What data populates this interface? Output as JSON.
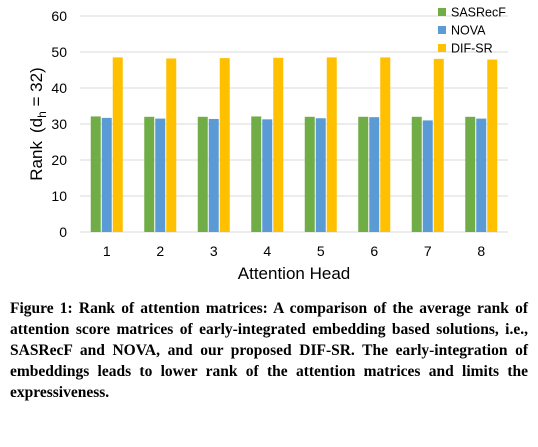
{
  "chart_data": {
    "type": "bar",
    "categories": [
      "1",
      "2",
      "3",
      "4",
      "5",
      "6",
      "7",
      "8"
    ],
    "series": [
      {
        "name": "SASRecF",
        "color": "#70AD47",
        "values": [
          32.1,
          32.0,
          32.0,
          32.1,
          32.0,
          32.0,
          32.0,
          32.0
        ]
      },
      {
        "name": "NOVA",
        "color": "#5B9BD5",
        "values": [
          31.7,
          31.5,
          31.4,
          31.3,
          31.6,
          31.9,
          31.0,
          31.5
        ]
      },
      {
        "name": "DIF-SR",
        "color": "#FFC000",
        "values": [
          48.5,
          48.2,
          48.3,
          48.4,
          48.5,
          48.5,
          48.1,
          47.9
        ]
      }
    ],
    "ylim": [
      0,
      60
    ],
    "yticks": [
      "0",
      "10",
      "20",
      "30",
      "40",
      "50",
      "60"
    ],
    "xlabel": "Attention Head",
    "ylabel": "Rank",
    "ylabel_math": "(d",
    "ylabel_math_sub": "h",
    "ylabel_math_rest": " = 32)",
    "grid": true,
    "legend_position": "top-right"
  },
  "caption": {
    "text": "Figure 1: Rank of attention matrices: A comparison of the average rank of attention score matrices of early-integrated embedding based solutions, i.e., SASRecF and NOVA, and our proposed DIF-SR. The early-integration of embeddings leads to lower rank of the attention matrices and limits the expressiveness."
  }
}
